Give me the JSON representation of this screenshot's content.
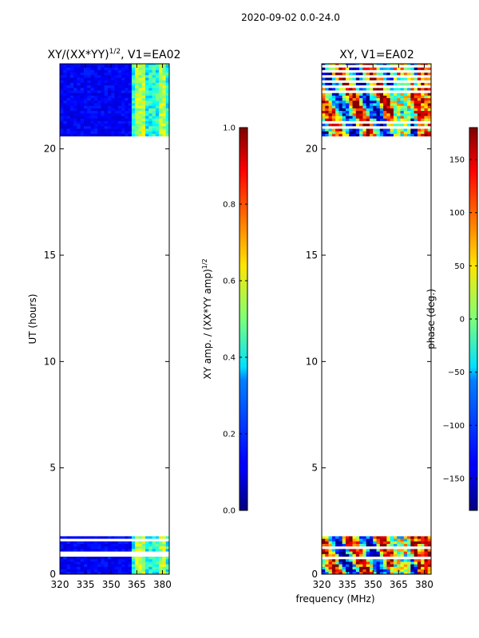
{
  "figure": {
    "suptitle": "2020-09-02 0.0-24.0",
    "xlabel_shared": "frequency (MHz)"
  },
  "chart_data": [
    {
      "type": "heatmap",
      "id": "amp",
      "title_main": "XY/(XX*YY)",
      "title_exp": "1/2",
      "title_tail": ", V1=EA02",
      "ylabel": "UT (hours)",
      "xlim": [
        320,
        384
      ],
      "ylim": [
        0,
        24
      ],
      "xticks": [
        320,
        335,
        350,
        365,
        380
      ],
      "yticks": [
        0,
        5,
        10,
        15,
        20
      ],
      "data_time_ranges": [
        [
          0,
          1.9
        ],
        [
          20.6,
          24
        ]
      ],
      "colormap": "jet",
      "colorbar": {
        "label_main": "XY amp. / (XX*YY amp)",
        "label_exp": "1/2",
        "range": [
          0,
          1
        ],
        "ticks": [
          "0.0",
          "0.2",
          "0.4",
          "0.6",
          "0.8",
          "1.0"
        ],
        "tick_values": [
          0,
          0.2,
          0.4,
          0.6,
          0.8,
          1.0
        ]
      }
    },
    {
      "type": "heatmap",
      "id": "phase",
      "title_main": "XY, V1=EA02",
      "title_exp": "",
      "title_tail": "",
      "ylabel": "",
      "xlim": [
        320,
        384
      ],
      "ylim": [
        0,
        24
      ],
      "xticks": [
        320,
        335,
        350,
        365,
        380
      ],
      "yticks": [
        0,
        5,
        10,
        15,
        20
      ],
      "data_time_ranges": [
        [
          0,
          1.9
        ],
        [
          20.6,
          24
        ]
      ],
      "colormap": "jet",
      "colorbar": {
        "label_main": "phase (deg.)",
        "label_exp": "",
        "range": [
          -180,
          180
        ],
        "ticks": [
          "−150",
          "−100",
          "−50",
          "0",
          "50",
          "100",
          "150"
        ],
        "tick_values": [
          -150,
          -100,
          -50,
          0,
          50,
          100,
          150
        ]
      }
    }
  ]
}
